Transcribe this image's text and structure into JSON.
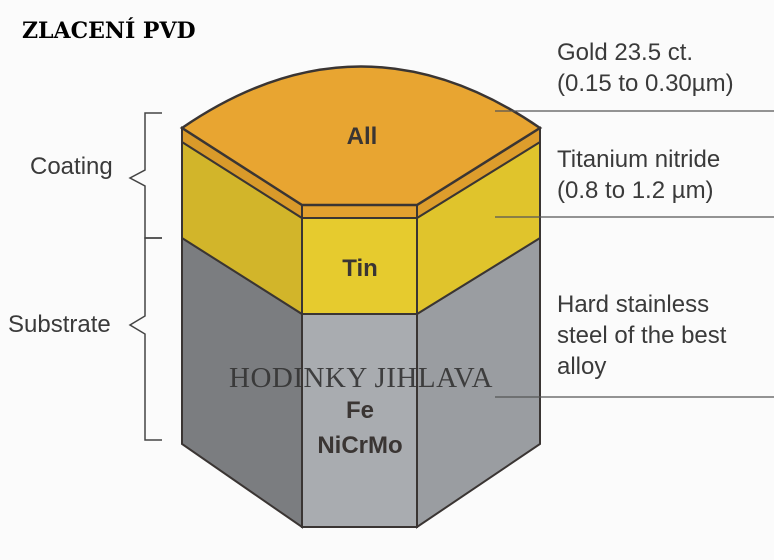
{
  "title": "ZLACENÍ PVD",
  "watermark": "HODINKY JIHLAVA",
  "left_labels": {
    "coating": "Coating",
    "substrate": "Substrate"
  },
  "layers": [
    {
      "inner_label": "All",
      "desc_line1": "Gold 23.5 ct.",
      "desc_line2": "(0.15 to 0.30µm)",
      "color": "#e3a12f"
    },
    {
      "inner_label": "Tin",
      "desc_line1": "Titanium nitride",
      "desc_line2": "(0.8 to 1.2 µm)",
      "color": "#e3c52c"
    },
    {
      "inner_label_1": "Fe",
      "inner_label_2": "NiCrMo",
      "desc_line1": "Hard stainless",
      "desc_line2": "steel of the best",
      "desc_line3": "alloy",
      "color": "#a9acb0"
    }
  ]
}
